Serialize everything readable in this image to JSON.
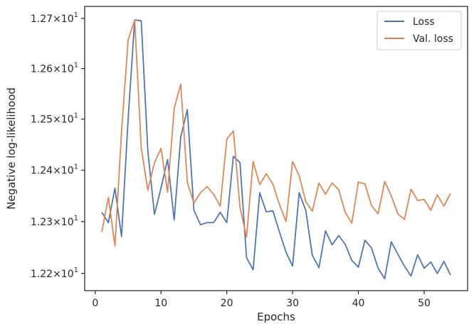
{
  "chart_data": {
    "type": "line",
    "xlabel": "Epochs",
    "ylabel": "Negative log-likelihood",
    "y_scale": "log",
    "xlim": [
      -1.6,
      56.6
    ],
    "ylim": [
      12.167,
      12.724
    ],
    "x_ticks": [
      {
        "value": 0,
        "label": "0"
      },
      {
        "value": 10,
        "label": "10"
      },
      {
        "value": 20,
        "label": "20"
      },
      {
        "value": 30,
        "label": "30"
      },
      {
        "value": 40,
        "label": "40"
      },
      {
        "value": 50,
        "label": "50"
      }
    ],
    "y_ticks": [
      {
        "value": 12.2,
        "mantissa": "1.22",
        "label_base": "×10",
        "exponent": "1"
      },
      {
        "value": 12.3,
        "mantissa": "1.23",
        "label_base": "×10",
        "exponent": "1"
      },
      {
        "value": 12.4,
        "mantissa": "1.24",
        "label_base": "×10",
        "exponent": "1"
      },
      {
        "value": 12.5,
        "mantissa": "1.25",
        "label_base": "×10",
        "exponent": "1"
      },
      {
        "value": 12.6,
        "mantissa": "1.26",
        "label_base": "×10",
        "exponent": "1"
      },
      {
        "value": 12.7,
        "mantissa": "1.27",
        "label_base": "×10",
        "exponent": "1"
      }
    ],
    "grid": false,
    "legend_position": "top-right",
    "x": [
      1,
      2,
      3,
      4,
      5,
      6,
      7,
      8,
      9,
      10,
      11,
      12,
      13,
      14,
      15,
      16,
      17,
      18,
      19,
      20,
      21,
      22,
      23,
      24,
      25,
      26,
      27,
      28,
      29,
      30,
      31,
      32,
      33,
      34,
      35,
      36,
      37,
      38,
      39,
      40,
      41,
      42,
      43,
      44,
      45,
      46,
      47,
      48,
      49,
      50,
      51,
      52,
      53,
      54
    ],
    "series": [
      {
        "name": "Loss",
        "color": "#4c72b0",
        "values": [
          12.318,
          12.298,
          12.365,
          12.271,
          12.5,
          12.697,
          12.695,
          12.437,
          12.314,
          12.365,
          12.421,
          12.303,
          12.465,
          12.519,
          12.322,
          12.294,
          12.298,
          12.298,
          12.318,
          12.298,
          12.427,
          12.415,
          12.23,
          12.207,
          12.356,
          12.319,
          12.321,
          12.28,
          12.241,
          12.214,
          12.356,
          12.322,
          12.235,
          12.211,
          12.282,
          12.255,
          12.273,
          12.256,
          12.225,
          12.212,
          12.264,
          12.249,
          12.21,
          12.19,
          12.261,
          12.237,
          12.214,
          12.195,
          12.236,
          12.21,
          12.222,
          12.2,
          12.223,
          12.197
        ]
      },
      {
        "name": "Val. loss",
        "color": "#dd8452",
        "values": [
          12.28,
          12.347,
          12.253,
          12.475,
          12.657,
          12.697,
          12.443,
          12.361,
          12.414,
          12.443,
          12.357,
          12.521,
          12.569,
          12.376,
          12.336,
          12.356,
          12.368,
          12.353,
          12.33,
          12.461,
          12.477,
          12.328,
          12.27,
          12.417,
          12.372,
          12.393,
          12.373,
          12.333,
          12.3,
          12.417,
          12.389,
          12.339,
          12.32,
          12.375,
          12.353,
          12.375,
          12.362,
          12.318,
          12.297,
          12.377,
          12.373,
          12.331,
          12.315,
          12.378,
          12.35,
          12.315,
          12.304,
          12.363,
          12.341,
          12.343,
          12.322,
          12.352,
          12.33,
          12.355
        ]
      }
    ]
  }
}
